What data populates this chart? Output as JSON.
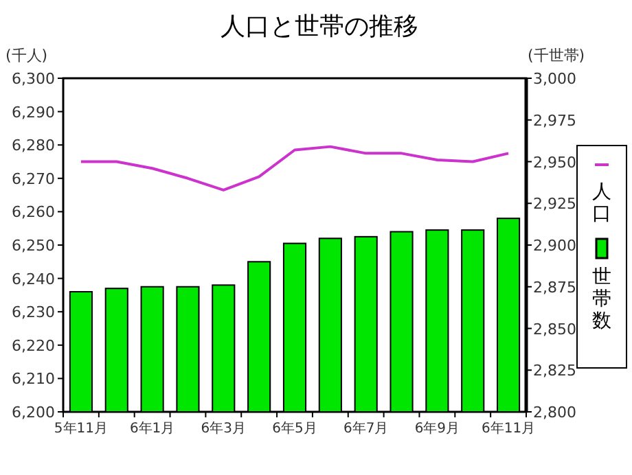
{
  "chart_data": {
    "type": "bar",
    "title": "人口と世帯の推移",
    "ylabel": "(千人)",
    "y2label": "(千世帯)",
    "categories": [
      "5年11月",
      null,
      "6年1月",
      null,
      "6年3月",
      null,
      "6年5月",
      null,
      "6年7月",
      null,
      "6年9月",
      null,
      "6年11月"
    ],
    "series": [
      {
        "name": "人口",
        "type": "line",
        "axis": "y",
        "color": "#cc33cc",
        "values": [
          6275,
          6275,
          6273,
          6270,
          6266.5,
          6270.5,
          6278.5,
          6279.5,
          6277.5,
          6277.5,
          6275.5,
          6275,
          6277.5
        ]
      },
      {
        "name": "世帯数",
        "axis": "y2",
        "color": "#00e600",
        "values": [
          2872,
          2874,
          2875,
          2875,
          2876,
          2890,
          2901,
          2904,
          2905,
          2908,
          2909,
          2909,
          2916
        ]
      }
    ],
    "ylim": [
      6200,
      6300
    ],
    "yticks": [
      {
        "value": 6200,
        "label": "6,200"
      },
      {
        "value": 6210,
        "label": "6,210"
      },
      {
        "value": 6220,
        "label": "6,220"
      },
      {
        "value": 6230,
        "label": "6,230"
      },
      {
        "value": 6240,
        "label": "6,240"
      },
      {
        "value": 6250,
        "label": "6,250"
      },
      {
        "value": 6260,
        "label": "6,260"
      },
      {
        "value": 6270,
        "label": "6,270"
      },
      {
        "value": 6280,
        "label": "6,280"
      },
      {
        "value": 6290,
        "label": "6,290"
      },
      {
        "value": 6300,
        "label": "6,300"
      }
    ],
    "y2lim": [
      2800,
      3000
    ],
    "y2ticks": [
      {
        "value": 2800,
        "label": "2,800"
      },
      {
        "value": 2825,
        "label": "2,825"
      },
      {
        "value": 2850,
        "label": "2,850"
      },
      {
        "value": 2875,
        "label": "2,875"
      },
      {
        "value": 2900,
        "label": "2,900"
      },
      {
        "value": 2925,
        "label": "2,925"
      },
      {
        "value": 2950,
        "label": "2,950"
      },
      {
        "value": 2975,
        "label": "2,975"
      },
      {
        "value": 3000,
        "label": "3,000"
      }
    ],
    "grid": false,
    "legend": "right",
    "marker": "none",
    "line_style": "solid"
  }
}
